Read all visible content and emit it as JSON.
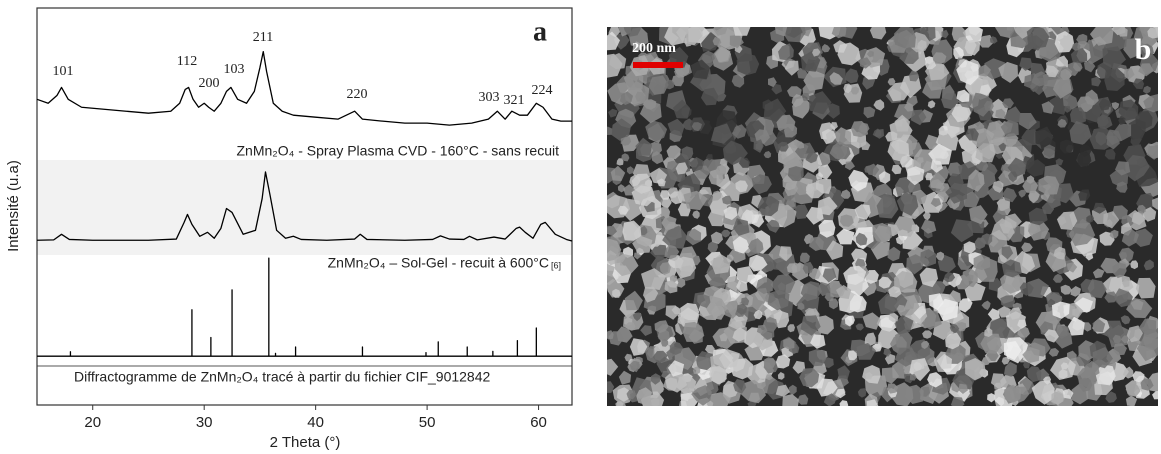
{
  "chart_data": {
    "type": "line",
    "panel_label": "a",
    "x_label": "2 Theta (°)",
    "y_label": "Intensité (u.a)",
    "xlim": [
      15,
      63
    ],
    "xticks": [
      20,
      30,
      40,
      50,
      60
    ],
    "ylim": [
      0,
      100
    ],
    "peak_labels": [
      "101",
      "112",
      "200",
      "103",
      "211",
      "220",
      "303",
      "321",
      "224"
    ],
    "series": [
      {
        "name": "ZnMn₂O₄ - Spray Plasma CVD - 160°C - sans recuit",
        "color": "#000000",
        "x": [
          15,
          16,
          16.8,
          17.2,
          17.8,
          19,
          21,
          23,
          25,
          27,
          27.8,
          28.3,
          28.6,
          29.0,
          29.5,
          30,
          30.4,
          30.9,
          31.5,
          32.0,
          32.4,
          33,
          33.8,
          34.5,
          35.0,
          35.3,
          35.6,
          36.2,
          37,
          38,
          40,
          42,
          43.5,
          44.2,
          46,
          48,
          50,
          52,
          54,
          55.5,
          56.3,
          57,
          57.6,
          58.3,
          59,
          59.8,
          60.4,
          61.2,
          62,
          63
        ],
        "values": [
          77,
          76,
          78,
          80,
          77,
          75,
          74.5,
          74,
          73.5,
          74,
          76,
          79.5,
          80,
          77,
          75,
          76,
          75,
          74,
          76,
          79,
          80,
          77,
          76,
          79,
          85,
          89,
          84,
          76,
          74,
          73,
          72.5,
          72,
          74,
          72,
          71.5,
          71,
          71,
          70.5,
          71,
          72,
          74,
          72,
          74,
          73,
          73,
          76,
          75,
          72,
          71.5,
          71.5
        ]
      },
      {
        "name": "ZnMn₂O₄ – Sol-Gel - recuit à 600°C",
        "reference": "[6]",
        "color": "#000000",
        "x": [
          15,
          16.5,
          17.2,
          17.9,
          20,
          25,
          27.5,
          28.2,
          28.5,
          28.9,
          29.6,
          30.3,
          30.9,
          31.5,
          32.0,
          32.5,
          33.5,
          34.6,
          35.2,
          35.5,
          35.9,
          36.5,
          37.3,
          38,
          38.7,
          41,
          43.5,
          44,
          44.6,
          48,
          50.5,
          51.2,
          52,
          53.3,
          53.8,
          54.5,
          56,
          57,
          58,
          58.3,
          58.8,
          59.5,
          60.2,
          60.6,
          61.5,
          62.5,
          63
        ],
        "values": [
          41.5,
          41.6,
          43,
          41.7,
          41.5,
          41.5,
          41.8,
          46,
          48,
          45.5,
          42.5,
          43.5,
          42,
          44.5,
          49.5,
          48.5,
          43,
          44,
          52,
          58.7,
          53,
          44,
          42,
          42.5,
          41.7,
          41.5,
          41.8,
          43,
          41.7,
          41.5,
          41.7,
          42.6,
          41.8,
          41.7,
          42.5,
          41.6,
          42.3,
          41.8,
          44.5,
          44.8,
          43.5,
          42,
          45.5,
          46,
          43,
          41.7,
          41.3
        ]
      },
      {
        "name": "Diffractogramme de ZnMn₂O₄ tracé à partir du fichier CIF_9012842",
        "color": "#000000",
        "x": [
          15,
          18,
          18,
          18,
          28.9,
          28.9,
          28.9,
          30.6,
          30.6,
          30.6,
          32.5,
          32.5,
          32.5,
          35.8,
          35.8,
          35.8,
          36.4,
          36.4,
          36.4,
          38.2,
          38.2,
          38.2,
          44.2,
          44.2,
          44.2,
          49.9,
          49.9,
          49.9,
          51,
          51,
          51,
          53.6,
          53.6,
          53.6,
          55.9,
          55.9,
          55.9,
          58.1,
          58.1,
          58.1,
          59.8,
          59.8,
          59.8,
          63
        ],
        "values": [
          12.3,
          12.3,
          13.4,
          12.3,
          12.3,
          24,
          12.3,
          12.3,
          17,
          12.3,
          12.3,
          29,
          12.3,
          12.3,
          37,
          12.3,
          12.3,
          13,
          12.3,
          12.3,
          14.6,
          12.3,
          12.3,
          14.6,
          12.3,
          12.3,
          13.2,
          12.3,
          12.3,
          15.9,
          12.3,
          12.3,
          14.6,
          12.3,
          12.3,
          13.5,
          12.3,
          12.3,
          16.2,
          12.3,
          12.3,
          19.4,
          12.3,
          12.3
        ]
      }
    ]
  },
  "image_panel": {
    "label": "b",
    "scale_bar": "200 nm"
  }
}
